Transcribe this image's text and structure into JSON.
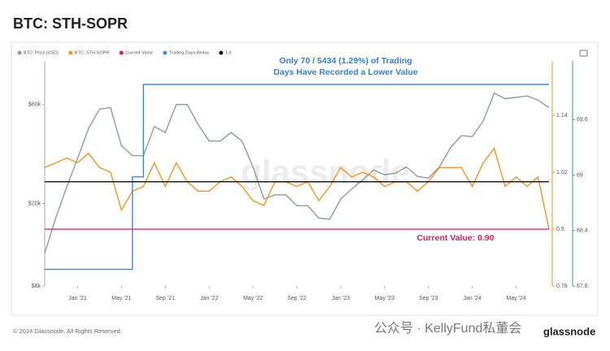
{
  "chart_data": {
    "type": "line",
    "title": "BTC: STH-SOPR",
    "annotations": [
      "Only 70 / 5434 (1.29%) of Trading Days Have Recorded a Lower Value",
      "Current Value: 0.90"
    ],
    "footer": "© 2024 Glassnode. All Rights Reserved.",
    "watermark": "glassnode",
    "overlay_text": "公众号 · KellyFund私董会",
    "x": [
      "2020-10",
      "2020-11",
      "2020-12",
      "2021-01",
      "2021-02",
      "2021-03",
      "2021-04",
      "2021-05",
      "2021-06",
      "2021-07",
      "2021-08",
      "2021-09",
      "2021-10",
      "2021-11",
      "2021-12",
      "2022-01",
      "2022-02",
      "2022-03",
      "2022-04",
      "2022-05",
      "2022-06",
      "2022-07",
      "2022-08",
      "2022-09",
      "2022-10",
      "2022-11",
      "2022-12",
      "2023-01",
      "2023-02",
      "2023-03",
      "2023-04",
      "2023-05",
      "2023-06",
      "2023-07",
      "2023-08",
      "2023-09",
      "2023-10",
      "2023-11",
      "2023-12",
      "2024-01",
      "2024-02",
      "2024-03",
      "2024-04",
      "2024-05",
      "2024-06",
      "2024-07",
      "2024-08"
    ],
    "xticks": [
      {
        "value": "2021-01",
        "label": "Jan '21"
      },
      {
        "value": "2021-05",
        "label": "May '21"
      },
      {
        "value": "2021-09",
        "label": "Sep '21"
      },
      {
        "value": "2022-01",
        "label": "Jan '22"
      },
      {
        "value": "2022-05",
        "label": "May '22"
      },
      {
        "value": "2022-09",
        "label": "Sep '22"
      },
      {
        "value": "2023-01",
        "label": "Jan '23"
      },
      {
        "value": "2023-05",
        "label": "May '23"
      },
      {
        "value": "2023-09",
        "label": "Sep '23"
      },
      {
        "value": "2024-01",
        "label": "Jan '24"
      },
      {
        "value": "2024-05",
        "label": "May '24"
      }
    ],
    "ylog": true,
    "ylim": [
      8000,
      100000
    ],
    "yticks": [
      {
        "value": 8000,
        "label": "$8k"
      },
      {
        "value": 20000,
        "label": "$20k"
      },
      {
        "value": 60000,
        "label": "$60k"
      }
    ],
    "y2lim": [
      0.78,
      1.26
    ],
    "y2ticks": [
      0.78,
      0.9,
      1.02,
      1.14
    ],
    "y3lim": [
      67.8,
      70.26
    ],
    "y3ticks": [
      67.8,
      68.4,
      69,
      69.6
    ],
    "series": [
      {
        "name": "BTC: Price [USD]",
        "color": "#8d9ba1",
        "axis": "y",
        "values": [
          11500,
          17000,
          24000,
          33000,
          46000,
          57000,
          58000,
          38000,
          34000,
          34000,
          47000,
          44000,
          60000,
          60000,
          48000,
          40000,
          40000,
          44000,
          40000,
          30000,
          21000,
          22000,
          22000,
          19500,
          19500,
          17000,
          16800,
          21000,
          23500,
          26000,
          29000,
          27500,
          28000,
          30000,
          27000,
          26500,
          30000,
          37000,
          42500,
          42000,
          50000,
          68000,
          64000,
          65000,
          66000,
          63000,
          58000
        ]
      },
      {
        "name": "BTC: STH-SOPR",
        "color": "#f7931a",
        "axis": "y2",
        "values": [
          1.03,
          1.04,
          1.05,
          1.04,
          1.06,
          1.03,
          1.02,
          0.94,
          0.98,
          0.99,
          1.04,
          0.99,
          1.04,
          1.0,
          0.98,
          0.98,
          1.0,
          1.01,
          0.99,
          0.96,
          0.95,
          1.0,
          1.0,
          0.99,
          1.0,
          0.96,
          0.99,
          1.03,
          1.01,
          1.02,
          1.01,
          0.99,
          1.0,
          1.0,
          0.98,
          1.0,
          1.03,
          1.03,
          1.03,
          0.99,
          1.04,
          1.07,
          0.99,
          1.01,
          0.99,
          1.01,
          0.9
        ]
      },
      {
        "name": "Current Value",
        "color": "#e8175d",
        "axis": "y2",
        "hline": 0.9
      },
      {
        "name": "Trading Days Below",
        "color": "#3a8ee6",
        "axis": "y3",
        "step": true,
        "values": [
          67.98,
          67.98,
          67.98,
          67.98,
          67.98,
          67.98,
          67.98,
          67.98,
          68.98,
          69.98,
          69.98,
          69.98,
          69.98,
          69.98,
          69.98,
          69.98,
          69.98,
          69.98,
          69.98,
          69.98,
          69.98,
          69.98,
          69.98,
          69.98,
          69.98,
          69.98,
          69.98,
          69.98,
          69.98,
          69.98,
          69.98,
          69.98,
          69.98,
          69.98,
          69.98,
          69.98,
          69.98,
          69.98,
          69.98,
          69.98,
          69.98,
          69.98,
          69.98,
          69.98,
          69.98,
          69.98,
          69.98
        ]
      },
      {
        "name": "1.0",
        "color": "#111111",
        "axis": "y2",
        "hline": 1
      }
    ]
  }
}
